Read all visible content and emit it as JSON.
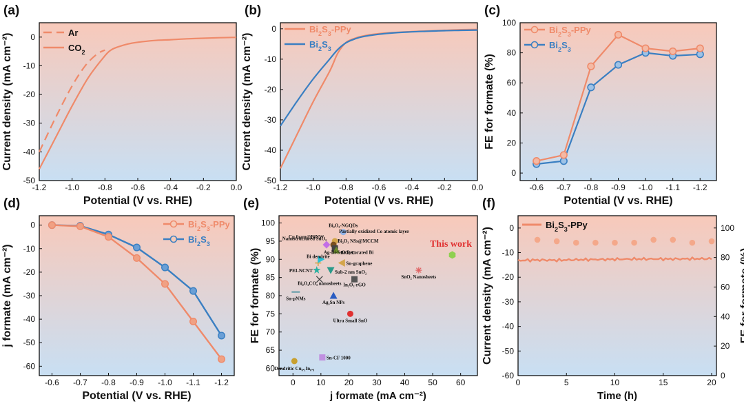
{
  "colors": {
    "orange": "#ef8a6a",
    "blue": "#3a7fc2",
    "red": "#e03030",
    "bg_top": "#f8cdbf",
    "bg_bottom": "#c6dcf1"
  },
  "chart_data": [
    {
      "panel": "(a)",
      "type": "line",
      "xlabel": "Potential (V vs. RHE)",
      "ylabel": "Current density (mA cm⁻²)",
      "xlim": [
        -1.2,
        0.0
      ],
      "ylim": [
        -50,
        5
      ],
      "xticks": [
        -1.2,
        -1.0,
        -0.8,
        -0.6,
        -0.4,
        -0.2,
        0.0
      ],
      "xtick_labels": [
        "-1.2",
        "-1.0",
        "-0.8",
        "-0.6",
        "-0.4",
        "-0.2",
        "0.0"
      ],
      "yticks": [
        0,
        -10,
        -20,
        -30,
        -40,
        -50
      ],
      "ytick_labels": [
        "0",
        "-10",
        "-20",
        "-30",
        "-40",
        "-50"
      ],
      "series": [
        {
          "name": "Ar",
          "style": "dashed",
          "x": [
            -1.2,
            -1.1,
            -1.0,
            -0.92,
            -0.85,
            -0.8
          ],
          "y": [
            -40,
            -28,
            -17,
            -10,
            -6,
            -4.5
          ]
        },
        {
          "name": "CO2",
          "style": "solid",
          "x": [
            -1.2,
            -1.1,
            -1.0,
            -0.9,
            -0.8,
            -0.76,
            -0.72,
            -0.66,
            -0.6,
            -0.5,
            -0.4,
            -0.3,
            -0.2,
            -0.1,
            0.0
          ],
          "y": [
            -46,
            -35,
            -24,
            -14,
            -6.5,
            -4.4,
            -3.4,
            -2.4,
            -1.8,
            -1.2,
            -0.9,
            -0.6,
            -0.4,
            -0.2,
            -0.1
          ]
        }
      ]
    },
    {
      "panel": "(b)",
      "type": "line",
      "xlabel": "Potential (V vs. RHE)",
      "ylabel": "Current density (mA cm⁻²)",
      "xlim": [
        -1.2,
        0.0
      ],
      "ylim": [
        -50,
        2
      ],
      "xticks": [
        -1.2,
        -1.0,
        -0.8,
        -0.6,
        -0.4,
        -0.2,
        0.0
      ],
      "xtick_labels": [
        "-1.2",
        "-1.0",
        "-0.8",
        "-0.6",
        "-0.4",
        "-0.2",
        "0.0"
      ],
      "yticks": [
        0,
        -10,
        -20,
        -30,
        -40,
        -50
      ],
      "ytick_labels": [
        "0",
        "-10",
        "-20",
        "-30",
        "-40",
        "-50"
      ],
      "series": [
        {
          "name": "Bi2S3-PPy",
          "color": "orange",
          "x": [
            -1.2,
            -1.1,
            -1.0,
            -0.9,
            -0.85,
            -0.8,
            -0.75,
            -0.7,
            -0.6,
            -0.5,
            -0.4,
            -0.3,
            -0.2,
            -0.1,
            0.0
          ],
          "y": [
            -46,
            -35,
            -24,
            -14,
            -8,
            -4.5,
            -3.2,
            -2.4,
            -1.6,
            -1.2,
            -0.9,
            -0.7,
            -0.5,
            -0.3,
            -0.2
          ]
        },
        {
          "name": "Bi2S3",
          "color": "blue",
          "x": [
            -1.2,
            -1.1,
            -1.0,
            -0.9,
            -0.85,
            -0.8,
            -0.75,
            -0.7,
            -0.6,
            -0.5,
            -0.4,
            -0.3,
            -0.2,
            -0.1,
            0.0
          ],
          "y": [
            -32,
            -24,
            -16.5,
            -10,
            -6.8,
            -4.6,
            -3.4,
            -2.6,
            -1.8,
            -1.3,
            -1.0,
            -0.8,
            -0.6,
            -0.5,
            -0.4
          ]
        }
      ]
    },
    {
      "panel": "(c)",
      "type": "line",
      "xlabel": "Potential (V vs. RHE)",
      "ylabel": "FE for formate (%)",
      "categories": [
        "-0.6",
        "-0.7",
        "-0.8",
        "-0.9",
        "-1.0",
        "-1.1",
        "-1.2"
      ],
      "ylim": [
        -5,
        100
      ],
      "yticks": [
        0,
        20,
        40,
        60,
        80,
        100
      ],
      "ytick_labels": [
        "0",
        "20",
        "40",
        "60",
        "80",
        "100"
      ],
      "series": [
        {
          "name": "Bi2S3-PPy",
          "color": "orange",
          "values": [
            8,
            12,
            71,
            92,
            83,
            81,
            83
          ]
        },
        {
          "name": "Bi2S3",
          "color": "blue",
          "values": [
            6,
            8,
            57,
            72,
            80,
            78,
            79
          ]
        }
      ]
    },
    {
      "panel": "(d)",
      "type": "line",
      "xlabel": "Potential (V vs. RHE)",
      "ylabel": "j formate (mA cm⁻²)",
      "categories": [
        "-0.6",
        "-0.7",
        "-0.8",
        "-0.9",
        "-1.0",
        "-1.1",
        "-1.2"
      ],
      "ylim": [
        -64,
        4
      ],
      "yticks": [
        0,
        -10,
        -20,
        -30,
        -40,
        -50,
        -60
      ],
      "ytick_labels": [
        "0",
        "-10",
        "-20",
        "-30",
        "-40",
        "-50",
        "-60"
      ],
      "series": [
        {
          "name": "Bi2S3-PPy",
          "color": "orange",
          "values": [
            0,
            -0.5,
            -5,
            -14,
            -25,
            -41,
            -57
          ]
        },
        {
          "name": "Bi2S3",
          "color": "blue",
          "values": [
            0,
            -0.3,
            -4,
            -9.5,
            -18,
            -28,
            -47
          ]
        }
      ]
    },
    {
      "panel": "(e)",
      "type": "scatter",
      "xlabel": "j formate (mA cm⁻²)",
      "ylabel": "FE for formate (%)",
      "xlim": [
        -5,
        66
      ],
      "ylim": [
        58,
        102
      ],
      "xticks": [
        0,
        10,
        20,
        30,
        40,
        50,
        60
      ],
      "xtick_labels": [
        "0",
        "10",
        "20",
        "30",
        "40",
        "50",
        "60"
      ],
      "yticks": [
        60,
        65,
        70,
        75,
        80,
        85,
        90,
        95,
        100
      ],
      "ytick_labels": [
        "60",
        "65",
        "70",
        "75",
        "80",
        "85",
        "90",
        "95",
        "100"
      ],
      "points": [
        {
          "label": "Bi₂O₃-NGQDs",
          "x": 18,
          "y": 97.5,
          "color": "#8fb2e6",
          "shape": "circle"
        },
        {
          "label": "Cu foam@BiNW",
          "x": 12,
          "y": 94,
          "color": "#c36ee6",
          "shape": "diamond"
        },
        {
          "label": "Partially oxidized Co atomic layer",
          "x": 15,
          "y": 95,
          "color": "#d4a54a",
          "shape": "circle"
        },
        {
          "label": "Bi₂O₃ NSs@MCCM",
          "x": 14.5,
          "y": 94,
          "color": "#7a5020",
          "shape": "circle"
        },
        {
          "label": "Nanostructured SnO₂",
          "x": 15,
          "y": 93,
          "color": "#444444",
          "shape": "square"
        },
        {
          "label": "BiOₓ/C",
          "x": 15.5,
          "y": 92.5,
          "color": "#6a8a2a",
          "shape": "triangle"
        },
        {
          "label": "Bi dendrite",
          "x": 9,
          "y": 89,
          "color": "#d4a54a",
          "shape": "plus"
        },
        {
          "label": "Ag-Bi-S-O Decorated Bi",
          "x": 10,
          "y": 90,
          "color": "#28c2d8",
          "shape": "tri-right"
        },
        {
          "label": "Sn-graphene",
          "x": 17.5,
          "y": 89,
          "color": "#d4a54a",
          "shape": "tri-left"
        },
        {
          "label": "PEI-NCNT",
          "x": 8.5,
          "y": 87,
          "color": "#28b0a0",
          "shape": "star"
        },
        {
          "label": "Sub-2 nm SnO₂",
          "x": 13.5,
          "y": 87,
          "color": "#2a9a8a",
          "shape": "triangle-down"
        },
        {
          "label": "Bi₂O₂CO₃ nanosheets",
          "x": 9.5,
          "y": 84.5,
          "color": "#444444",
          "shape": "x"
        },
        {
          "label": "In₂O₃-rGO",
          "x": 22,
          "y": 84.5,
          "color": "#555555",
          "shape": "square"
        },
        {
          "label": "Sn-pNMs",
          "x": 1,
          "y": 81,
          "color": "#3a8a9a",
          "shape": "dash"
        },
        {
          "label": "Ag₃Sn NPs",
          "x": 14.5,
          "y": 80,
          "color": "#2a5cc2",
          "shape": "triangle"
        },
        {
          "label": "Ultra Small SnO",
          "x": 20.5,
          "y": 75,
          "color": "#e03030",
          "shape": "circle"
        },
        {
          "label": "SnO₂ Nanosheets",
          "x": 45,
          "y": 87,
          "color": "#e06060",
          "shape": "asterisk"
        },
        {
          "label": "This work",
          "x": 57,
          "y": 91.2,
          "color": "#8fd050",
          "shape": "hexagon",
          "highlight": true
        },
        {
          "label": "Sn-CF 1000",
          "x": 10.5,
          "y": 63,
          "color": "#c090e0",
          "shape": "square"
        },
        {
          "label": "Dendritic Cu₀.₁In₀.₉",
          "x": 0.5,
          "y": 62,
          "color": "#c8a030",
          "shape": "circle"
        }
      ]
    },
    {
      "panel": "(f)",
      "type": "line",
      "xlabel": "Time (h)",
      "ylabel": "Current density (mA cm⁻²)",
      "y2label": "FE for formate (%)",
      "xlim": [
        0,
        20.5
      ],
      "ylim": [
        -60,
        5
      ],
      "y2lim": [
        0,
        108.3
      ],
      "xticks": [
        0,
        5,
        10,
        15,
        20
      ],
      "xtick_labels": [
        "0",
        "5",
        "10",
        "15",
        "20"
      ],
      "yticks": [
        0,
        -10,
        -20,
        -30,
        -40,
        -50,
        -60
      ],
      "ytick_labels": [
        "0",
        "-10",
        "-20",
        "-30",
        "-40",
        "-50",
        "-60"
      ],
      "y2ticks": [
        0,
        20,
        40,
        60,
        80,
        100
      ],
      "y2tick_labels": [
        "0",
        "20",
        "40",
        "60",
        "80",
        "100"
      ],
      "series": [
        {
          "name": "Bi2S3-PPy",
          "color": "orange",
          "x": [
            0,
            2,
            4,
            6,
            8,
            10,
            12,
            14,
            16,
            18,
            20
          ],
          "y": [
            -13.2,
            -13.0,
            -13.1,
            -12.9,
            -12.8,
            -12.7,
            -12.6,
            -12.6,
            -12.6,
            -12.5,
            -12.5
          ]
        },
        {
          "name": "FE",
          "color": "orange",
          "axis": "right",
          "x": [
            2,
            4,
            6,
            8,
            10,
            12,
            14,
            16,
            18,
            20
          ],
          "y": [
            92,
            91,
            90,
            90,
            90,
            90,
            92,
            92,
            90,
            91
          ]
        }
      ]
    }
  ]
}
